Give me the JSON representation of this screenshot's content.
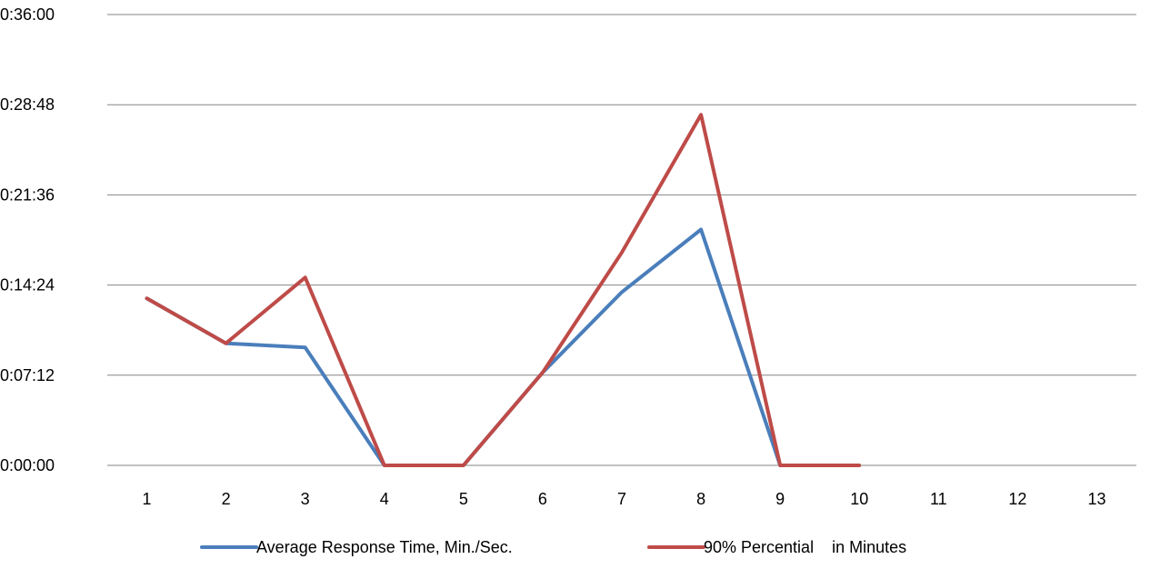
{
  "chart_data": {
    "type": "line",
    "title": "",
    "xlabel": "",
    "ylabel": "",
    "categories": [
      "1",
      "2",
      "3",
      "4",
      "5",
      "6",
      "7",
      "8",
      "9",
      "10",
      "11",
      "12",
      "13"
    ],
    "y_tick_labels": [
      "0:00:00",
      "0:07:12",
      "0:14:24",
      "0:21:36",
      "0:28:48",
      "0:36:00"
    ],
    "ylim": [
      "0:00:00",
      "0:36:00"
    ],
    "grid": "horizontal",
    "legend_position": "bottom",
    "series": [
      {
        "name": "Average Response Time, Min./Sec.",
        "color": "#4a7ebb",
        "values": [
          "0:13:20",
          "0:09:45",
          "0:09:25",
          "0:00:00",
          "0:00:00",
          "0:07:25",
          "0:13:50",
          "0:18:50",
          "0:00:00",
          null,
          null,
          null,
          null
        ]
      },
      {
        "name": "90% Percential    in Minutes",
        "color": "#be4b48",
        "values": [
          "0:13:20",
          "0:09:45",
          "0:15:00",
          "0:00:00",
          "0:00:00",
          "0:07:25",
          "0:17:00",
          "0:28:00",
          "0:00:00",
          "0:00:00",
          null,
          null,
          null
        ]
      }
    ]
  }
}
